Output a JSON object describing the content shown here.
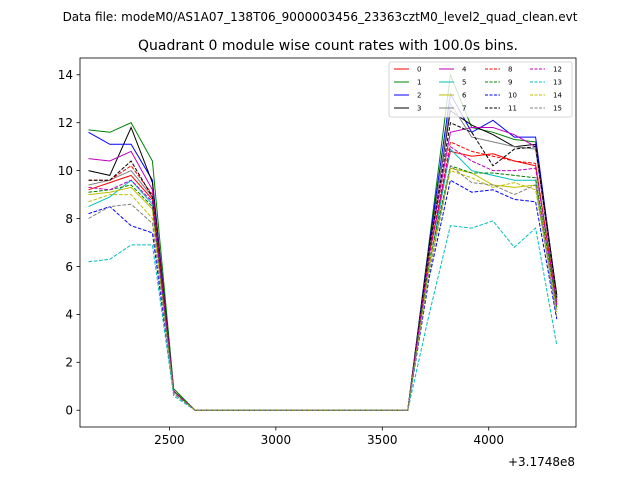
{
  "figure": {
    "suptitle": "Data file: modeM0/AS1A07_138T06_9000003456_23363cztM0_level2_quad_clean.evt"
  },
  "chart_data": {
    "type": "line",
    "title": "Quadrant 0 module wise count rates with 100.0s bins.",
    "xlabel": "",
    "ylabel": "",
    "x_offset_label": "+3.1748e8",
    "xlim": [
      2080,
      4410
    ],
    "ylim": [
      -0.7,
      14.7
    ],
    "xticks": [
      2500,
      3000,
      3500,
      4000
    ],
    "xtick_labels": [
      "2500",
      "3000",
      "3500",
      "4000"
    ],
    "yticks": [
      0,
      2,
      4,
      6,
      8,
      10,
      12,
      14
    ],
    "ytick_labels": [
      "0",
      "2",
      "4",
      "6",
      "8",
      "10",
      "12",
      "14"
    ],
    "x": [
      2120,
      2220,
      2320,
      2420,
      2520,
      2620,
      2720,
      2820,
      2920,
      3020,
      3120,
      3220,
      3320,
      3420,
      3520,
      3620,
      3720,
      3820,
      3920,
      4020,
      4120,
      4220,
      4320
    ],
    "legend": {
      "location": "upper right",
      "ncol": 4
    },
    "series": [
      {
        "name": "0",
        "color": "#ff0000",
        "dash": "solid",
        "values": [
          9.2,
          9.5,
          9.8,
          8.8,
          0.8,
          0,
          0,
          0,
          0,
          0,
          0,
          0,
          0,
          0,
          0,
          0,
          6.5,
          10.8,
          10.6,
          10.7,
          10.4,
          10.2,
          4.5
        ]
      },
      {
        "name": "1",
        "color": "#008000",
        "dash": "solid",
        "values": [
          11.7,
          11.6,
          12.0,
          10.4,
          0.9,
          0,
          0,
          0,
          0,
          0,
          0,
          0,
          0,
          0,
          0,
          0,
          7.0,
          14.0,
          11.8,
          11.6,
          11.3,
          11.2,
          4.8
        ]
      },
      {
        "name": "2",
        "color": "#0000ff",
        "dash": "solid",
        "values": [
          11.6,
          11.1,
          11.1,
          9.6,
          0.8,
          0,
          0,
          0,
          0,
          0,
          0,
          0,
          0,
          0,
          0,
          0,
          6.9,
          13.2,
          11.6,
          12.1,
          11.4,
          11.4,
          4.7
        ]
      },
      {
        "name": "3",
        "color": "#000000",
        "dash": "solid",
        "values": [
          10.0,
          9.8,
          11.8,
          9.5,
          0.8,
          0,
          0,
          0,
          0,
          0,
          0,
          0,
          0,
          0,
          0,
          0,
          6.8,
          12.5,
          11.9,
          11.5,
          11.0,
          11.1,
          4.8
        ]
      },
      {
        "name": "4",
        "color": "#bf00bf",
        "dash": "solid",
        "values": [
          10.5,
          10.4,
          10.8,
          9.2,
          0.8,
          0,
          0,
          0,
          0,
          0,
          0,
          0,
          0,
          0,
          0,
          0,
          6.7,
          11.6,
          11.8,
          11.8,
          11.5,
          11.0,
          4.6
        ]
      },
      {
        "name": "5",
        "color": "#00bfbf",
        "dash": "solid",
        "values": [
          8.5,
          8.9,
          9.6,
          8.6,
          0.8,
          0,
          0,
          0,
          0,
          0,
          0,
          0,
          0,
          0,
          0,
          0,
          6.0,
          10.9,
          10.0,
          9.8,
          9.6,
          9.6,
          4.2
        ]
      },
      {
        "name": "6",
        "color": "#bfbf00",
        "dash": "solid",
        "values": [
          9.0,
          9.1,
          9.3,
          8.4,
          0.8,
          0,
          0,
          0,
          0,
          0,
          0,
          0,
          0,
          0,
          0,
          0,
          6.1,
          10.1,
          9.9,
          9.4,
          9.3,
          9.4,
          4.3
        ]
      },
      {
        "name": "7",
        "color": "#808080",
        "dash": "solid",
        "values": [
          9.4,
          9.6,
          10.0,
          8.9,
          0.8,
          0,
          0,
          0,
          0,
          0,
          0,
          0,
          0,
          0,
          0,
          0,
          6.6,
          12.8,
          11.4,
          11.2,
          11.0,
          10.9,
          4.6
        ]
      },
      {
        "name": "8",
        "color": "#ff0000",
        "dash": "dashed",
        "values": [
          9.6,
          9.6,
          10.2,
          9.0,
          0.8,
          0,
          0,
          0,
          0,
          0,
          0,
          0,
          0,
          0,
          0,
          0,
          6.5,
          11.2,
          10.8,
          10.6,
          10.4,
          10.3,
          4.4
        ]
      },
      {
        "name": "9",
        "color": "#008000",
        "dash": "dashed",
        "values": [
          9.1,
          9.2,
          9.4,
          8.5,
          0.8,
          0,
          0,
          0,
          0,
          0,
          0,
          0,
          0,
          0,
          0,
          0,
          6.2,
          10.2,
          9.9,
          9.9,
          9.8,
          9.7,
          4.3
        ]
      },
      {
        "name": "10",
        "color": "#0000ff",
        "dash": "dashed",
        "values": [
          8.2,
          8.5,
          7.7,
          7.4,
          0.7,
          0,
          0,
          0,
          0,
          0,
          0,
          0,
          0,
          0,
          0,
          0,
          5.5,
          9.6,
          9.1,
          9.2,
          8.8,
          8.7,
          3.8
        ]
      },
      {
        "name": "11",
        "color": "#000000",
        "dash": "dashed",
        "values": [
          9.6,
          9.6,
          10.4,
          8.9,
          0.8,
          0,
          0,
          0,
          0,
          0,
          0,
          0,
          0,
          0,
          0,
          0,
          6.7,
          12.0,
          11.6,
          10.2,
          10.9,
          11.0,
          4.7
        ]
      },
      {
        "name": "12",
        "color": "#bf00bf",
        "dash": "dashed",
        "values": [
          9.3,
          9.2,
          9.6,
          8.7,
          0.8,
          0,
          0,
          0,
          0,
          0,
          0,
          0,
          0,
          0,
          0,
          0,
          6.4,
          11.0,
          10.4,
          10.0,
          10.0,
          10.1,
          4.4
        ]
      },
      {
        "name": "13",
        "color": "#00bfbf",
        "dash": "dashed",
        "values": [
          6.2,
          6.3,
          6.9,
          6.9,
          0.6,
          0,
          0,
          0,
          0,
          0,
          0,
          0,
          0,
          0,
          0,
          0,
          4.0,
          7.7,
          7.6,
          7.9,
          6.8,
          7.6,
          2.7
        ]
      },
      {
        "name": "14",
        "color": "#bfbf00",
        "dash": "dashed",
        "values": [
          8.7,
          9.0,
          9.0,
          8.0,
          0.7,
          0,
          0,
          0,
          0,
          0,
          0,
          0,
          0,
          0,
          0,
          0,
          5.9,
          10.0,
          9.7,
          9.3,
          9.5,
          9.2,
          4.1
        ]
      },
      {
        "name": "15",
        "color": "#808080",
        "dash": "dashed",
        "values": [
          8.0,
          8.5,
          8.6,
          7.8,
          0.7,
          0,
          0,
          0,
          0,
          0,
          0,
          0,
          0,
          0,
          0,
          0,
          5.7,
          10.2,
          9.5,
          9.4,
          9.0,
          9.4,
          3.9
        ]
      }
    ]
  }
}
